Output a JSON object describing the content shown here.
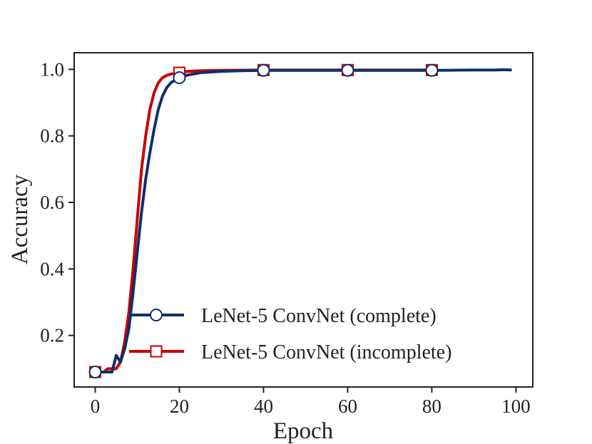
{
  "chart_data": {
    "type": "line",
    "title": "",
    "xlabel": "Epoch",
    "ylabel": "Accuracy",
    "xlim": [
      -5,
      104
    ],
    "ylim": [
      0.045,
      1.05
    ],
    "xticks": [
      "0",
      "20",
      "40",
      "60",
      "80",
      "100"
    ],
    "yticks": [
      "0.2",
      "0.4",
      "0.6",
      "0.8",
      "1.0"
    ],
    "legend_position": "lower-right",
    "series": [
      {
        "name": "LeNet-5 ConvNet (complete)",
        "color": "#0d2f6b",
        "marker": "circle",
        "marker_x": [
          0,
          20,
          40,
          60,
          80
        ],
        "x": [
          0,
          1,
          2,
          3,
          4,
          5,
          6,
          7,
          8,
          9,
          10,
          11,
          12,
          13,
          14,
          15,
          16,
          17,
          18,
          19,
          20,
          22,
          25,
          30,
          35,
          40,
          50,
          60,
          70,
          80,
          90,
          95,
          97,
          99
        ],
        "y": [
          0.09,
          0.09,
          0.09,
          0.09,
          0.09,
          0.14,
          0.12,
          0.16,
          0.22,
          0.33,
          0.45,
          0.57,
          0.67,
          0.75,
          0.82,
          0.88,
          0.92,
          0.945,
          0.96,
          0.968,
          0.975,
          0.983,
          0.99,
          0.994,
          0.996,
          0.997,
          0.997,
          0.997,
          0.997,
          0.997,
          0.998,
          0.998,
          0.999,
          0.998
        ]
      },
      {
        "name": "LeNet-5 ConvNet (incomplete)",
        "color": "#cc0000",
        "marker": "square",
        "marker_x": [
          0,
          20,
          40,
          60,
          80
        ],
        "x": [
          0,
          1,
          2,
          3,
          4,
          5,
          6,
          7,
          8,
          9,
          10,
          11,
          12,
          13,
          14,
          15,
          16,
          17,
          18,
          19,
          20,
          22,
          25,
          30,
          40,
          60,
          80
        ],
        "y": [
          0.09,
          0.09,
          0.09,
          0.1,
          0.1,
          0.1,
          0.12,
          0.18,
          0.27,
          0.4,
          0.55,
          0.7,
          0.8,
          0.88,
          0.93,
          0.96,
          0.975,
          0.982,
          0.986,
          0.988,
          0.99,
          0.994,
          0.996,
          0.997,
          0.998,
          0.998,
          0.998
        ]
      }
    ]
  }
}
